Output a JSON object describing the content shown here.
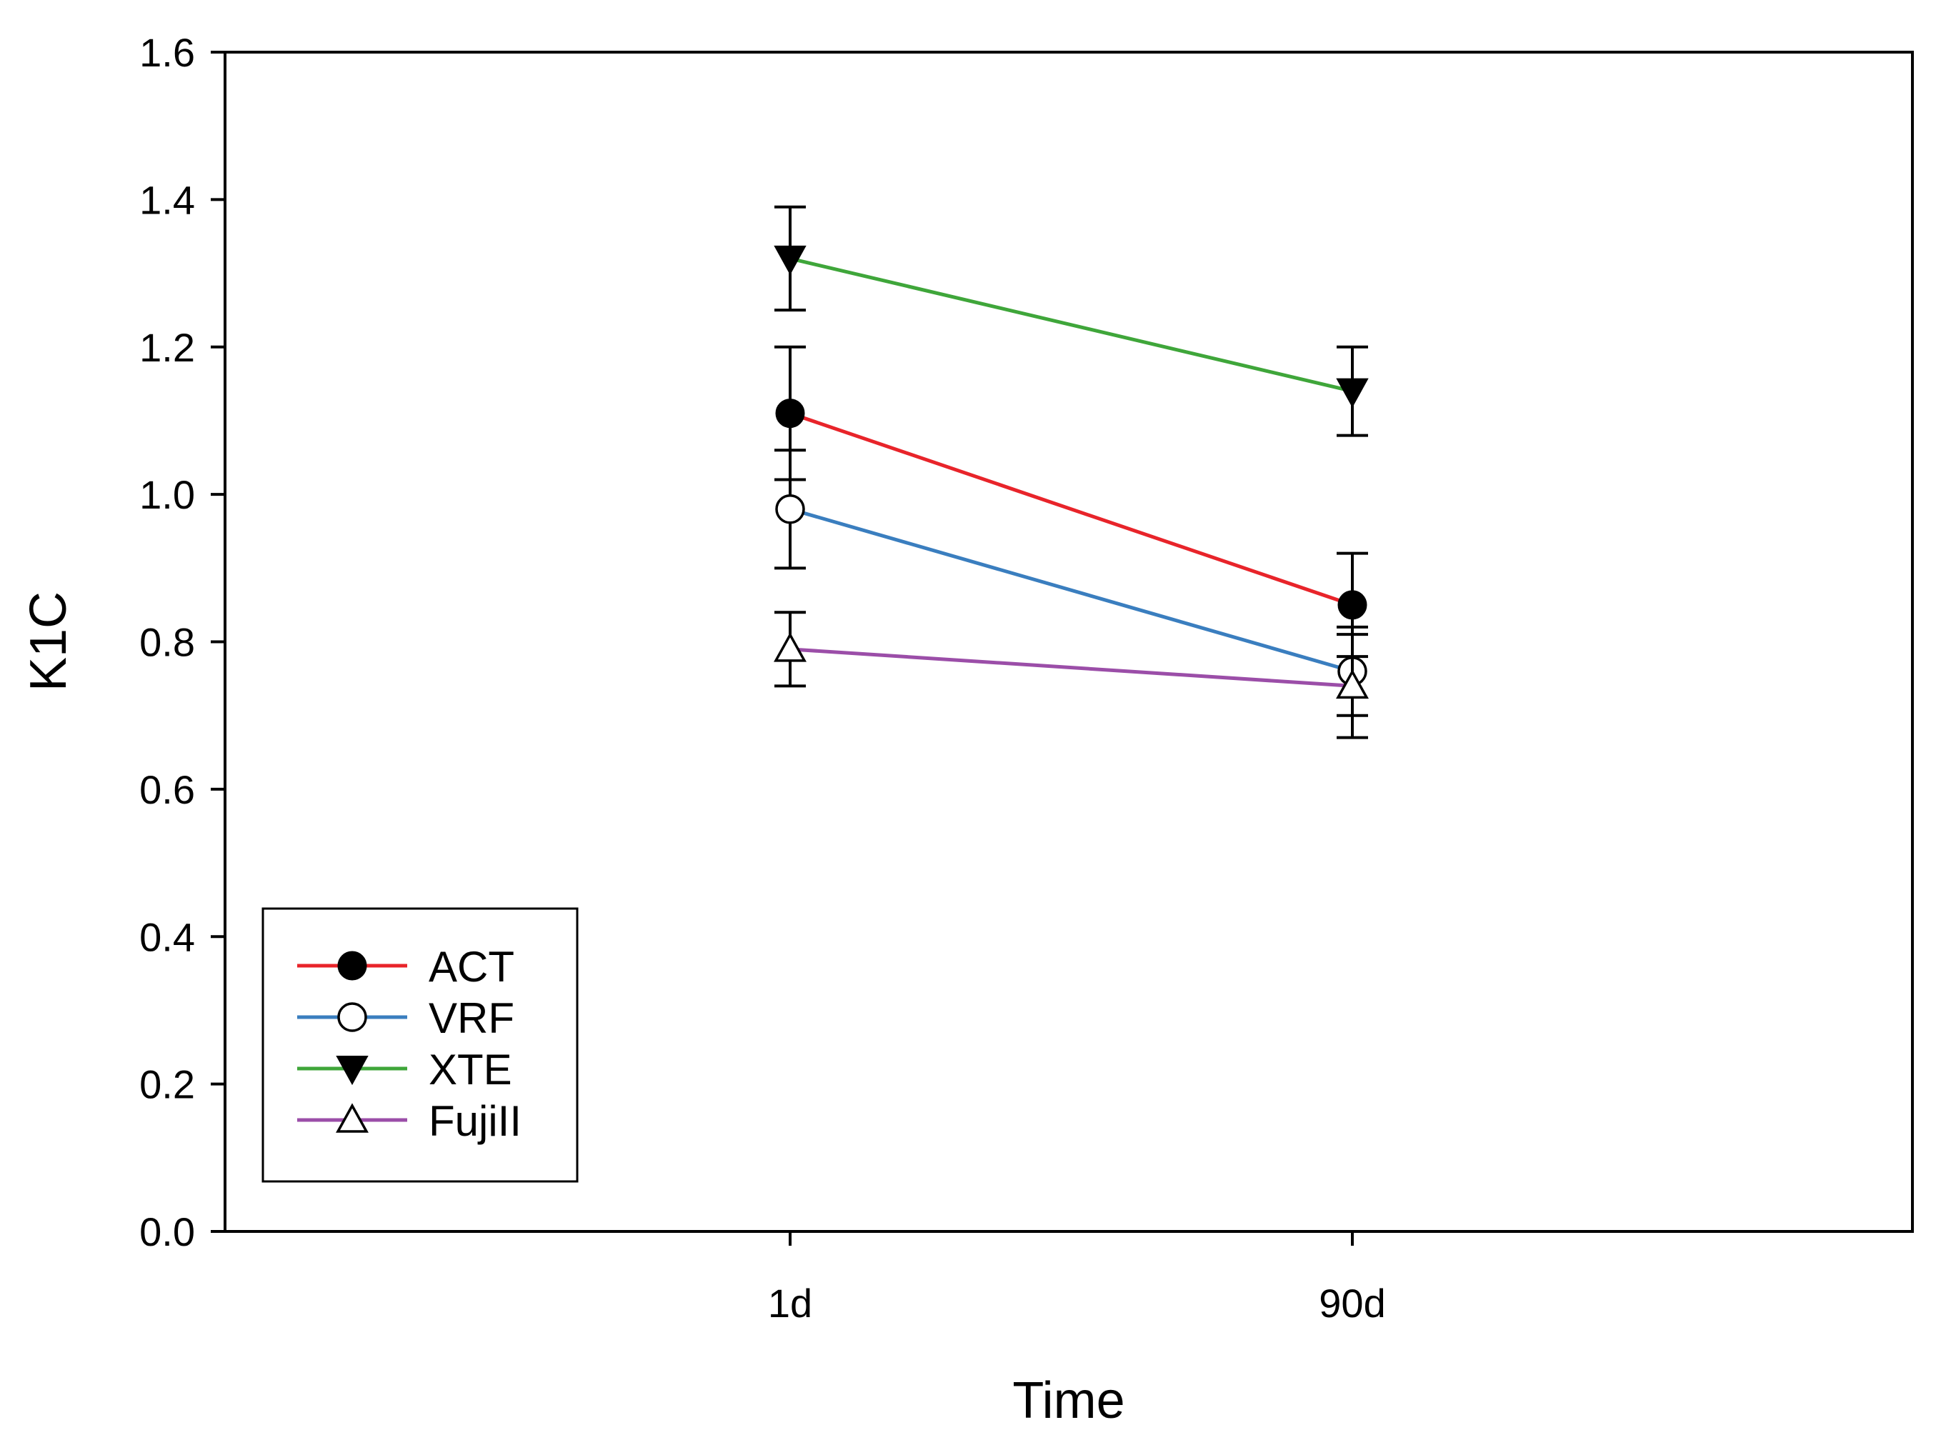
{
  "chart_data": {
    "type": "line",
    "title": "",
    "xlabel": "Time",
    "ylabel": "K1C",
    "categories": [
      "1d",
      "90d"
    ],
    "ylim": [
      0,
      1.6
    ],
    "yticks": [
      "0.0",
      "0.2",
      "0.4",
      "0.6",
      "0.8",
      "1.0",
      "1.2",
      "1.4",
      "1.6"
    ],
    "grid": false,
    "legend_position": "bottom-left",
    "series": [
      {
        "name": "ACT",
        "color": "#e8242a",
        "marker": "filled-circle",
        "values": [
          1.11,
          0.85
        ],
        "errors": [
          0.09,
          0.07
        ]
      },
      {
        "name": "VRF",
        "color": "#3a7ebf",
        "marker": "open-circle",
        "values": [
          0.98,
          0.76
        ],
        "errors": [
          0.08,
          0.06
        ]
      },
      {
        "name": "XTE",
        "color": "#3fa63a",
        "marker": "filled-triangle-down",
        "values": [
          1.32,
          1.14
        ],
        "errors": [
          0.07,
          0.06
        ]
      },
      {
        "name": "FujiII",
        "color": "#9b4ea8",
        "marker": "open-triangle-up",
        "values": [
          0.79,
          0.74
        ],
        "errors": [
          0.05,
          0.07
        ]
      }
    ]
  }
}
